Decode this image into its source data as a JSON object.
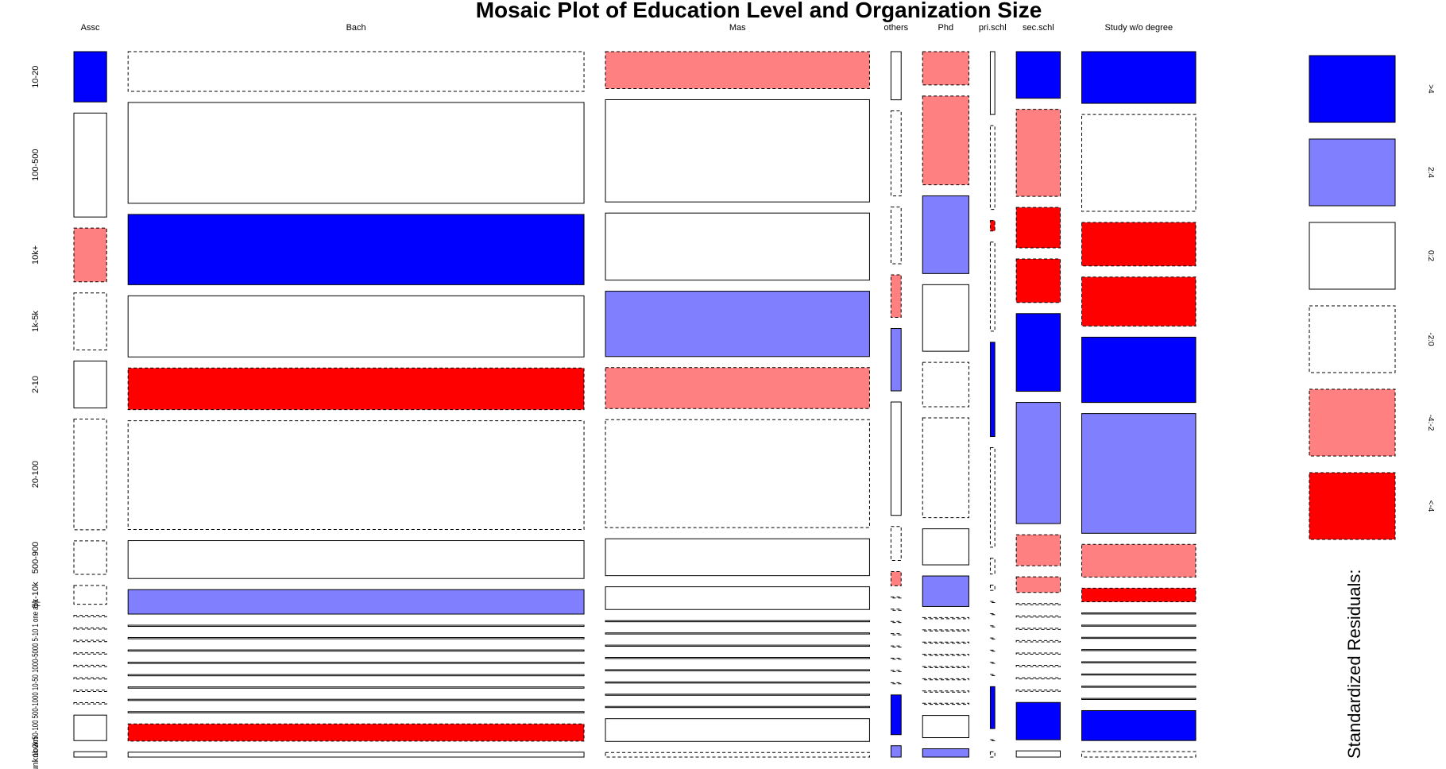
{
  "chart_data": {
    "type": "mosaic",
    "title": "Mosaic Plot of Education Level and Organization Size",
    "columns": [
      {
        "label": "Assc",
        "weight": 0.029
      },
      {
        "label": "Bach",
        "weight": 0.404
      },
      {
        "label": "Mas",
        "weight": 0.234
      },
      {
        "label": "others",
        "weight": 0.009
      },
      {
        "label": "Phd",
        "weight": 0.041
      },
      {
        "label": "pri.schl",
        "weight": 0.004
      },
      {
        "label": "sec.schl",
        "weight": 0.039
      },
      {
        "label": "Study w/o degree",
        "weight": 0.101
      }
    ],
    "rows": [
      "10-20",
      "100-500",
      "10k+",
      "1k-5k",
      "2-10",
      "20-100",
      "500-900",
      "5k-10k",
      "1k-2k",
      "50-100",
      "500-1000",
      "10-50",
      "1000-5000",
      "5-10",
      "1",
      "one",
      "app",
      "unknown"
    ],
    "row_labels_visible": [
      "10-20",
      "100-500",
      "10k+",
      "1k-5k",
      "2-10",
      "20-100",
      "500-900",
      "5k-10k",
      "unknown"
    ],
    "collapsed_row_labels_text": "1k-2k 50-100 500-1000 10-50 1000-5000 5-10 1 one app",
    "column_fractions": [
      [
        0.075,
        0.155,
        0.08,
        0.085,
        0.07,
        0.165,
        0.05,
        0.028,
        0.002,
        0.002,
        0.002,
        0.002,
        0.002,
        0.002,
        0.002,
        0.002,
        0.038,
        0.008
      ],
      [
        0.065,
        0.165,
        0.115,
        0.1,
        0.068,
        0.178,
        0.062,
        0.04,
        0.002,
        0.002,
        0.002,
        0.002,
        0.002,
        0.002,
        0.002,
        0.002,
        0.028,
        0.008
      ],
      [
        0.065,
        0.18,
        0.118,
        0.115,
        0.072,
        0.19,
        0.065,
        0.04,
        0.002,
        0.002,
        0.002,
        0.002,
        0.002,
        0.002,
        0.002,
        0.002,
        0.04,
        0.008
      ],
      [
        0.085,
        0.15,
        0.1,
        0.075,
        0.11,
        0.2,
        0.06,
        0.025,
        0.002,
        0.002,
        0.002,
        0.002,
        0.002,
        0.002,
        0.002,
        0.002,
        0.07,
        0.02
      ],
      [
        0.06,
        0.16,
        0.14,
        0.12,
        0.08,
        0.18,
        0.065,
        0.055,
        0.002,
        0.002,
        0.002,
        0.002,
        0.002,
        0.002,
        0.002,
        0.002,
        0.04,
        0.015
      ],
      [
        0.12,
        0.16,
        0.02,
        0.17,
        0.18,
        0.19,
        0.03,
        0.01,
        0.002,
        0.002,
        0.002,
        0.002,
        0.002,
        0.002,
        0.002,
        0.08,
        0.002,
        0.01
      ],
      [
        0.075,
        0.14,
        0.065,
        0.07,
        0.125,
        0.195,
        0.05,
        0.025,
        0.002,
        0.002,
        0.002,
        0.002,
        0.002,
        0.002,
        0.002,
        0.002,
        0.06,
        0.01
      ],
      [
        0.095,
        0.178,
        0.08,
        0.09,
        0.12,
        0.22,
        0.06,
        0.025,
        0.002,
        0.002,
        0.002,
        0.002,
        0.002,
        0.002,
        0.002,
        0.002,
        0.055,
        0.01
      ]
    ],
    "residual_classes": [
      [
        ">4",
        "0:2",
        "-4:-2",
        "-2:0",
        "0:2",
        "-2:0",
        "-2:0",
        "-2:0",
        "-2:0",
        "-2:0",
        "-2:0",
        "-2:0",
        "-2:0",
        "-2:0",
        "-2:0",
        "-2:0",
        "0:2",
        "0:2"
      ],
      [
        "-2:0",
        "0:2",
        ">4",
        "0:2",
        "<-4",
        "-2:0",
        "0:2",
        "2:4",
        "0:2",
        "0:2",
        "0:2",
        "0:2",
        "0:2",
        "0:2",
        "0:2",
        "0:2",
        "<-4",
        "0:2"
      ],
      [
        "-4:-2",
        "0:2",
        "0:2",
        "2:4",
        "-4:-2",
        "-2:0",
        "0:2",
        "0:2",
        "0:2",
        "0:2",
        "0:2",
        "0:2",
        "0:2",
        "0:2",
        "0:2",
        "0:2",
        "0:2",
        "-2:0"
      ],
      [
        "0:2",
        "-2:0",
        "-2:0",
        "-4:-2",
        "2:4",
        "0:2",
        "-2:0",
        "-4:-2",
        "-2:0",
        "-2:0",
        "-2:0",
        "-2:0",
        "-2:0",
        "-2:0",
        "-2:0",
        "-2:0",
        ">4",
        "2:4"
      ],
      [
        "-4:-2",
        "-4:-2",
        "2:4",
        "0:2",
        "-2:0",
        "-2:0",
        "0:2",
        "2:4",
        "-2:0",
        "-2:0",
        "-2:0",
        "-2:0",
        "-2:0",
        "-2:0",
        "-2:0",
        "-2:0",
        "0:2",
        "2:4"
      ],
      [
        "0:2",
        "-2:0",
        "<-4",
        "-2:0",
        ">4",
        "-2:0",
        "-2:0",
        "-2:0",
        "-2:0",
        "-2:0",
        "-2:0",
        "-2:0",
        "-2:0",
        "-2:0",
        "-2:0",
        ">4",
        "-2:0",
        "-2:0"
      ],
      [
        ">4",
        "-4:-2",
        "<-4",
        "<-4",
        ">4",
        "2:4",
        "-4:-2",
        "-4:-2",
        "-2:0",
        "-2:0",
        "-2:0",
        "-2:0",
        "-2:0",
        "-2:0",
        "-2:0",
        "-2:0",
        ">4",
        "0:2"
      ],
      [
        ">4",
        "-2:0",
        "<-4",
        "<-4",
        ">4",
        "2:4",
        "-4:-2",
        "<-4",
        "0:2",
        "0:2",
        "0:2",
        "0:2",
        "0:2",
        "0:2",
        "0:2",
        "0:2",
        ">4",
        "-2:0"
      ]
    ],
    "legend": {
      "title": "Standardized Residuals:",
      "placement": "right",
      "entries": [
        {
          "label": ">4",
          "fill": "#0000FF",
          "dashed": false
        },
        {
          "label": "2:4",
          "fill": "#8080FF",
          "dashed": false
        },
        {
          "label": "0:2",
          "fill": "#FFFFFF",
          "dashed": false
        },
        {
          "label": "-2:0",
          "fill": "#FFFFFF",
          "dashed": true
        },
        {
          "label": "-4:-2",
          "fill": "#FF8080",
          "dashed": true
        },
        {
          "label": "<-4",
          "fill": "#FF0000",
          "dashed": true
        }
      ]
    }
  }
}
